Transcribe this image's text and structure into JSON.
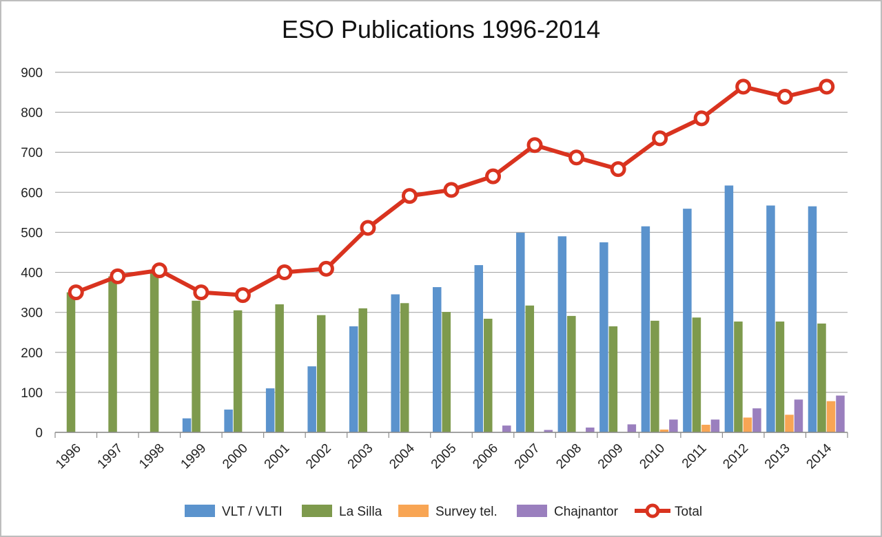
{
  "chart_data": {
    "type": "bar",
    "title": "ESO Publications 1996-2014",
    "xlabel": "",
    "ylabel": "",
    "ylim": [
      0,
      900
    ],
    "yticks": [
      0,
      100,
      200,
      300,
      400,
      500,
      600,
      700,
      800,
      900
    ],
    "grid": true,
    "legend_position": "bottom",
    "categories": [
      "1996",
      "1997",
      "1998",
      "1999",
      "2000",
      "2001",
      "2002",
      "2003",
      "2004",
      "2005",
      "2006",
      "2007",
      "2008",
      "2009",
      "2010",
      "2011",
      "2012",
      "2013",
      "2014"
    ],
    "series": [
      {
        "name": "VLT / VLTI",
        "type": "bar",
        "color": "#5b93cd",
        "values": [
          0,
          0,
          0,
          35,
          57,
          110,
          165,
          265,
          345,
          363,
          418,
          499,
          490,
          475,
          515,
          559,
          617,
          567,
          565
        ]
      },
      {
        "name": "La Silla",
        "type": "bar",
        "color": "#7e9a4d",
        "values": [
          350,
          390,
          405,
          329,
          305,
          320,
          293,
          310,
          323,
          301,
          284,
          317,
          291,
          265,
          279,
          287,
          277,
          277,
          272
        ]
      },
      {
        "name": "Survey tel.",
        "type": "bar",
        "color": "#f8a554",
        "values": [
          0,
          0,
          0,
          0,
          0,
          0,
          0,
          0,
          0,
          0,
          0,
          0,
          0,
          0,
          7,
          19,
          37,
          44,
          78
        ]
      },
      {
        "name": "Chajnantor",
        "type": "bar",
        "color": "#9a7fbe",
        "values": [
          0,
          0,
          0,
          0,
          0,
          0,
          0,
          0,
          0,
          0,
          17,
          6,
          12,
          20,
          32,
          32,
          60,
          82,
          92
        ]
      },
      {
        "name": "Total",
        "type": "line",
        "color": "#d9331f",
        "values": [
          350,
          390,
          405,
          350,
          343,
          400,
          409,
          511,
          591,
          606,
          640,
          718,
          687,
          658,
          735,
          785,
          864,
          839,
          864
        ]
      }
    ]
  }
}
